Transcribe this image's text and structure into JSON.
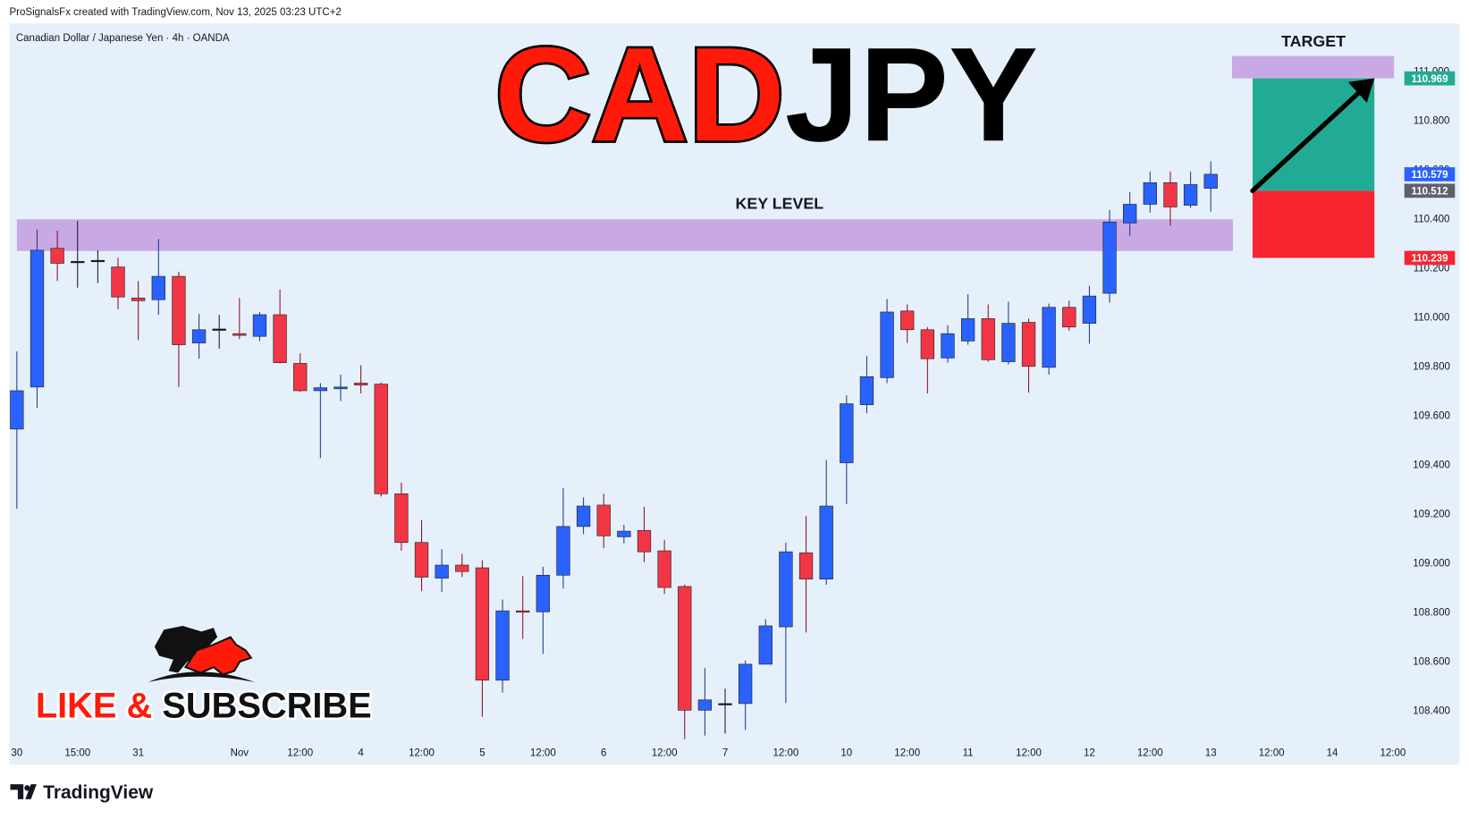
{
  "header": {
    "credit": "ProSignalsFx created with TradingView.com, Nov 13, 2025 03:23 UTC+2",
    "symbol": "Canadian Dollar / Japanese Yen · 4h · OANDA"
  },
  "chart_data": {
    "type": "candlestick",
    "title": {
      "base": "CAD",
      "quote": "JPY"
    },
    "categories": [
      "30",
      null,
      null,
      "15:00",
      null,
      null,
      "31",
      null,
      null,
      null,
      null,
      "Nov",
      null,
      null,
      "12:00",
      null,
      null,
      "4",
      null,
      null,
      "12:00",
      null,
      null,
      "5",
      null,
      null,
      "12:00",
      null,
      null,
      "6",
      null,
      null,
      "12:00",
      null,
      null,
      "7",
      null,
      null,
      "12:00",
      null,
      null,
      "10",
      null,
      null,
      "12:00",
      null,
      null,
      "11",
      null,
      null,
      "12:00",
      null,
      null,
      "12",
      null,
      null,
      "12:00",
      null,
      null,
      "13",
      null,
      null,
      "12:00",
      null,
      null,
      "14",
      null,
      null,
      "12:00"
    ],
    "open": [
      109.543,
      109.714,
      110.278,
      110.225,
      110.229,
      110.202,
      110.076,
      110.069,
      110.164,
      109.893,
      109.95,
      109.931,
      109.92,
      110.008,
      109.81,
      109.699,
      109.707,
      109.73,
      109.726,
      109.28,
      109.082,
      108.937,
      108.99,
      108.979,
      108.522,
      108.804,
      108.8,
      108.949,
      109.147,
      109.234,
      109.105,
      109.131,
      109.048,
      108.903,
      108.4,
      108.427,
      108.427,
      108.587,
      108.739,
      109.04,
      108.933,
      109.406,
      109.642,
      109.752,
      110.023,
      109.947,
      109.832,
      109.901,
      109.992,
      109.817,
      109.977,
      109.794,
      110.038,
      109.973,
      110.095,
      110.381,
      110.457,
      110.545,
      110.453,
      110.522,
      null,
      null,
      null,
      null,
      null,
      null,
      null,
      null,
      null
    ],
    "high": [
      109.859,
      110.354,
      110.35,
      110.389,
      110.27,
      110.24,
      110.145,
      110.316,
      110.183,
      110.011,
      110.008,
      110.076,
      110.019,
      110.11,
      109.851,
      109.73,
      109.764,
      109.802,
      109.733,
      109.326,
      109.173,
      109.055,
      109.036,
      109.01,
      108.85,
      108.945,
      108.983,
      109.303,
      109.265,
      109.28,
      109.154,
      109.227,
      109.093,
      108.91,
      108.571,
      108.488,
      108.602,
      108.77,
      109.082,
      109.189,
      109.417,
      109.68,
      109.84,
      110.072,
      110.05,
      109.958,
      109.966,
      110.091,
      110.05,
      110.061,
      109.992,
      110.053,
      110.065,
      110.126,
      110.434,
      110.507,
      110.59,
      110.59,
      110.59,
      110.632,
      null,
      null,
      null,
      null,
      null,
      null,
      null,
      null,
      null
    ],
    "low": [
      109.219,
      109.63,
      110.145,
      110.118,
      110.137,
      110.03,
      109.905,
      110.008,
      109.714,
      109.829,
      109.87,
      109.909,
      109.901,
      109.81,
      109.695,
      109.425,
      109.657,
      109.688,
      109.269,
      109.048,
      108.884,
      108.88,
      108.941,
      108.373,
      108.472,
      108.69,
      108.629,
      108.895,
      109.116,
      109.059,
      109.078,
      109.002,
      108.872,
      108.282,
      108.297,
      108.305,
      108.32,
      108.587,
      108.43,
      108.716,
      108.91,
      109.238,
      109.608,
      109.73,
      109.893,
      109.688,
      109.813,
      109.886,
      109.817,
      109.806,
      109.691,
      109.764,
      109.943,
      109.89,
      110.057,
      110.328,
      110.423,
      110.37,
      110.442,
      110.427,
      null,
      null,
      null,
      null,
      null,
      null,
      null,
      null,
      null
    ],
    "close": [
      109.699,
      110.27,
      110.217,
      110.225,
      110.229,
      110.08,
      110.065,
      110.164,
      109.886,
      109.947,
      109.95,
      109.924,
      110.008,
      109.813,
      109.699,
      109.711,
      109.714,
      109.722,
      109.28,
      109.082,
      108.941,
      108.99,
      108.964,
      108.522,
      108.804,
      108.8,
      108.949,
      109.147,
      109.23,
      109.109,
      109.128,
      109.044,
      108.899,
      108.4,
      108.442,
      108.427,
      108.587,
      108.743,
      109.044,
      108.933,
      109.23,
      109.646,
      109.756,
      110.019,
      109.947,
      109.829,
      109.931,
      109.992,
      109.825,
      109.973,
      109.798,
      110.038,
      109.958,
      110.084,
      110.385,
      110.457,
      110.545,
      110.446,
      110.537,
      110.579,
      null,
      null,
      null,
      null,
      null,
      null,
      null,
      null,
      null
    ],
    "up_color": "#2962ff",
    "down_color": "#f23645",
    "neutral_color": "#131722",
    "ylim": [
      108.278,
      111.192
    ],
    "yticks": [
      {
        "value": 108.4,
        "label": "108.400"
      },
      {
        "value": 108.6,
        "label": "108.600"
      },
      {
        "value": 108.8,
        "label": "108.800"
      },
      {
        "value": 109,
        "label": "109.000"
      },
      {
        "value": 109.2,
        "label": "109.200"
      },
      {
        "value": 109.4,
        "label": "109.400"
      },
      {
        "value": 109.6,
        "label": "109.600"
      },
      {
        "value": 109.8,
        "label": "109.800"
      },
      {
        "value": 110,
        "label": "110.000"
      },
      {
        "value": 110.2,
        "label": "110.200"
      },
      {
        "value": 110.4,
        "label": "110.400"
      },
      {
        "value": 110.6,
        "label": "110.600"
      },
      {
        "value": 110.8,
        "label": "110.800"
      },
      {
        "value": 111,
        "label": "111.000"
      }
    ],
    "zones": [
      {
        "label": "KEY LEVEL",
        "low": 110.267,
        "high": 110.396,
        "color": "#c9a9e4"
      },
      {
        "label": "TARGET",
        "low": 110.969,
        "high": 111.06,
        "color": "#c9a9e4"
      }
    ],
    "position": {
      "target": {
        "value": 110.969,
        "label": "110.969",
        "color": "#22ab94"
      },
      "entry": {
        "value": 110.512,
        "label": "110.512",
        "color": "#5d606b"
      },
      "stop": {
        "value": 110.239,
        "label": "110.239",
        "color": "#f7252f"
      }
    },
    "last_price": {
      "value": 110.579,
      "label": "110.579",
      "color": "#2962ff"
    }
  },
  "promo": {
    "like": "LIKE &",
    "subscribe": "SUBSCRIBE"
  },
  "footer": {
    "brand": "TradingView"
  }
}
